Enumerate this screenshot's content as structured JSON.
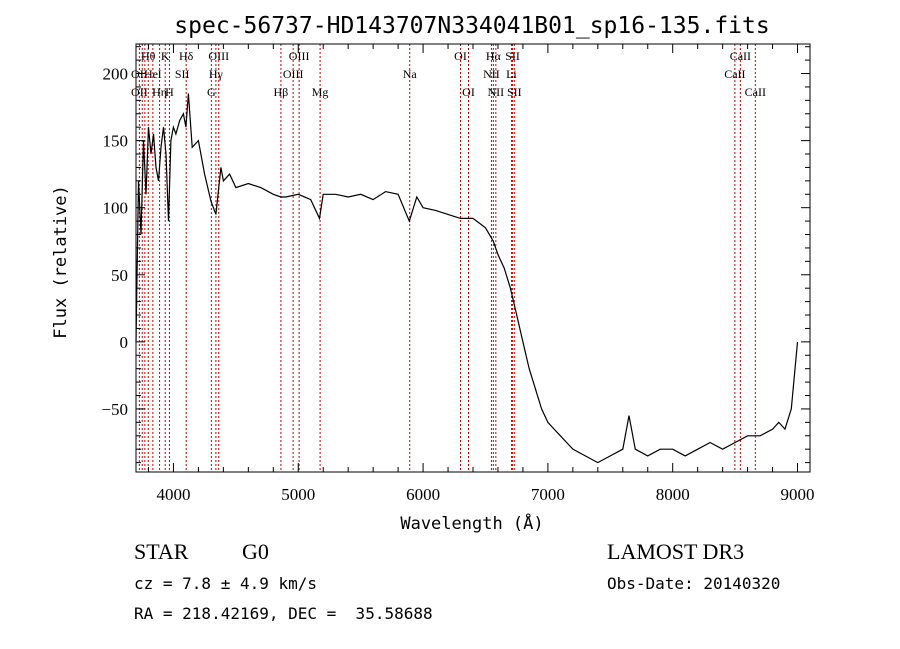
{
  "chart_data": {
    "type": "line",
    "title": "spec-56737-HD143707N334041B01_sp16-135.fits",
    "xlabel": "Wavelength (Å)",
    "ylabel": "Flux (relative)",
    "xlim": [
      3700,
      9100
    ],
    "ylim": [
      -97,
      222
    ],
    "xticks": [
      4000,
      5000,
      6000,
      7000,
      8000,
      9000
    ],
    "yticks": [
      -50,
      0,
      50,
      100,
      150,
      200
    ],
    "grid": false,
    "series": [
      {
        "color": "#000000",
        "x": [
          3700,
          3720,
          3740,
          3760,
          3780,
          3800,
          3820,
          3840,
          3860,
          3880,
          3900,
          3920,
          3940,
          3960,
          3980,
          4000,
          4020,
          4050,
          4080,
          4100,
          4120,
          4150,
          4200,
          4250,
          4300,
          4340,
          4380,
          4400,
          4450,
          4500,
          4600,
          4700,
          4800,
          4860,
          4900,
          5000,
          5100,
          5170,
          5200,
          5300,
          5400,
          5500,
          5600,
          5700,
          5800,
          5890,
          5950,
          6000,
          6100,
          6200,
          6300,
          6400,
          6500,
          6563,
          6600,
          6650,
          6700,
          6750,
          6800,
          6850,
          6900,
          6950,
          7000,
          7050,
          7100,
          7150,
          7200,
          7300,
          7400,
          7500,
          7600,
          7650,
          7700,
          7800,
          7900,
          8000,
          8100,
          8200,
          8300,
          8400,
          8500,
          8600,
          8700,
          8800,
          8850,
          8900,
          8950,
          9000
        ],
        "y": [
          0,
          120,
          80,
          150,
          110,
          160,
          140,
          155,
          130,
          120,
          145,
          160,
          140,
          90,
          150,
          160,
          155,
          165,
          170,
          160,
          185,
          145,
          150,
          125,
          105,
          95,
          130,
          120,
          125,
          115,
          118,
          115,
          110,
          108,
          108,
          110,
          106,
          92,
          110,
          110,
          108,
          110,
          106,
          112,
          110,
          90,
          108,
          100,
          98,
          95,
          92,
          92,
          85,
          75,
          65,
          55,
          40,
          20,
          0,
          -20,
          -35,
          -50,
          -60,
          -65,
          -70,
          -75,
          -80,
          -85,
          -90,
          -85,
          -80,
          -55,
          -80,
          -85,
          -80,
          -80,
          -85,
          -80,
          -75,
          -80,
          -75,
          -70,
          -70,
          -65,
          -60,
          -65,
          -50,
          0
        ]
      }
    ],
    "annotations": [
      {
        "label": "Hθ",
        "x": 3798,
        "row": 1
      },
      {
        "label": "OII",
        "x": 3727,
        "row": 3
      },
      {
        "label": "K",
        "x": 3934,
        "row": 1
      },
      {
        "label": "Hδ",
        "x": 4102,
        "row": 1
      },
      {
        "label": "OIII",
        "x": 4363,
        "row": 1
      },
      {
        "label": "OIII",
        "x": 5007,
        "row": 1
      },
      {
        "label": "OI",
        "x": 6300,
        "row": 1
      },
      {
        "label": "Hα",
        "x": 6563,
        "row": 1
      },
      {
        "label": "SII",
        "x": 6717,
        "row": 1
      },
      {
        "label": "CaII",
        "x": 8542,
        "row": 1
      },
      {
        "label": "OII",
        "x": 3727,
        "row": 2
      },
      {
        "label": "He",
        "x": 3820,
        "row": 2
      },
      {
        "label": "I",
        "x": 3889,
        "row": 2
      },
      {
        "label": "SII",
        "x": 4070,
        "row": 2
      },
      {
        "label": "Hγ",
        "x": 4340,
        "row": 2
      },
      {
        "label": "OIII",
        "x": 4959,
        "row": 2
      },
      {
        "label": "Na",
        "x": 5893,
        "row": 2
      },
      {
        "label": "NII",
        "x": 6548,
        "row": 2
      },
      {
        "label": "Li",
        "x": 6708,
        "row": 2
      },
      {
        "label": "CaII",
        "x": 8498,
        "row": 2
      },
      {
        "label": "Hη",
        "x": 3889,
        "row": 3
      },
      {
        "label": "H",
        "x": 3968,
        "row": 3
      },
      {
        "label": "G",
        "x": 4304,
        "row": 3
      },
      {
        "label": "Hβ",
        "x": 4861,
        "row": 3
      },
      {
        "label": "Mg",
        "x": 5175,
        "row": 3
      },
      {
        "label": "OI",
        "x": 6364,
        "row": 3
      },
      {
        "label": "NII",
        "x": 6583,
        "row": 3
      },
      {
        "label": "SII",
        "x": 6731,
        "row": 3
      },
      {
        "label": "CaII",
        "x": 8662,
        "row": 3
      }
    ],
    "line_color": "#cc0000",
    "line_positions": [
      3727,
      3750,
      3771,
      3798,
      3835,
      3889,
      3934,
      3968,
      4102,
      4304,
      4340,
      4363,
      4861,
      4959,
      5007,
      5175,
      5893,
      6300,
      6364,
      6548,
      6563,
      6583,
      6708,
      6717,
      6731,
      8498,
      8542,
      8662
    ]
  },
  "info": {
    "object_type": "STAR",
    "subclass": "G0",
    "survey": "LAMOST DR3",
    "cz": "cz = 7.8 ± 4.9 km/s",
    "obs_date": "Obs-Date: 20140320",
    "coords": "RA = 218.42169, DEC =  35.58688"
  }
}
